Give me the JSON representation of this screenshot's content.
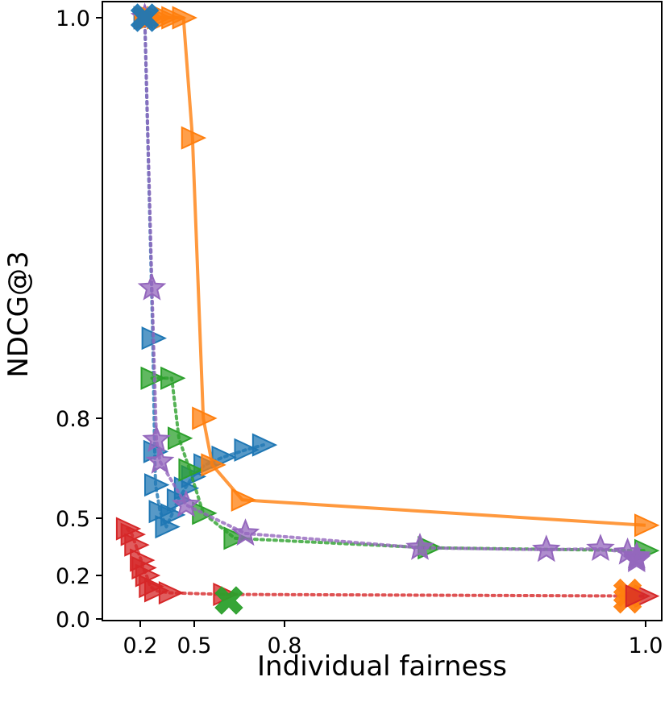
{
  "chart_data": {
    "type": "scatter",
    "title": "",
    "xlabel": "Individual fairness",
    "ylabel": "NDCG@3",
    "xlim": [
      0.0,
      1.0
    ],
    "ylim": [
      0.0,
      1.0
    ],
    "grid": false,
    "legend": "none",
    "x_ticks": [
      {
        "value": 0.2,
        "label": "0.2"
      },
      {
        "value": 0.5,
        "label": "0.5"
      },
      {
        "value": 0.8,
        "label": "0.8"
      },
      {
        "value": 1.0,
        "label": "1.0"
      }
    ],
    "y_ticks": [
      {
        "value": 0.0,
        "label": "0.0"
      },
      {
        "value": 0.2,
        "label": "0.2"
      },
      {
        "value": 0.5,
        "label": "0.5"
      },
      {
        "value": 0.8,
        "label": "0.8"
      },
      {
        "value": 1.0,
        "label": "1.0"
      }
    ],
    "series": [
      {
        "name": "blue",
        "color": "#1f77b4",
        "line_style": "dotted",
        "marker": "triangle-right",
        "points": [
          [
            0.225,
            1.0
          ],
          [
            0.27,
            0.84
          ],
          [
            0.28,
            0.7
          ],
          [
            0.285,
            0.6
          ],
          [
            0.31,
            0.52
          ],
          [
            0.345,
            0.455
          ],
          [
            0.375,
            0.51
          ],
          [
            0.41,
            0.555
          ],
          [
            0.45,
            0.59
          ],
          [
            0.49,
            0.625
          ],
          [
            0.535,
            0.66
          ],
          [
            0.595,
            0.683
          ],
          [
            0.67,
            0.705
          ],
          [
            0.73,
            0.72
          ]
        ]
      },
      {
        "name": "orange",
        "color": "#ff7f0e",
        "line_style": "solid",
        "marker": "triangle-right",
        "points": [
          [
            0.23,
            1.0
          ],
          [
            0.26,
            1.0
          ],
          [
            0.3,
            1.0
          ],
          [
            0.34,
            1.0
          ],
          [
            0.38,
            1.0
          ],
          [
            0.44,
            1.0
          ],
          [
            0.49,
            0.94
          ],
          [
            0.53,
            0.8
          ],
          [
            0.56,
            0.66
          ],
          [
            0.66,
            0.555
          ],
          [
            1.0,
            0.463
          ]
        ]
      },
      {
        "name": "green",
        "color": "#2ca02c",
        "line_style": "dotted",
        "marker": "triangle-right",
        "points": [
          [
            0.265,
            0.82
          ],
          [
            0.375,
            0.82
          ],
          [
            0.415,
            0.74
          ],
          [
            0.475,
            0.645
          ],
          [
            0.53,
            0.515
          ],
          [
            0.635,
            0.395
          ],
          [
            0.88,
            0.345
          ],
          [
            1.0,
            0.33
          ]
        ]
      },
      {
        "name": "purple",
        "color": "#9467bd",
        "line_style": "dotted",
        "marker": "star",
        "points": [
          [
            0.225,
            1.0
          ],
          [
            0.265,
            0.865
          ],
          [
            0.29,
            0.735
          ],
          [
            0.31,
            0.67
          ],
          [
            0.455,
            0.54
          ],
          [
            0.67,
            0.42
          ],
          [
            0.875,
            0.345
          ],
          [
            0.945,
            0.335
          ],
          [
            0.975,
            0.34
          ],
          [
            0.99,
            0.32
          ],
          [
            0.995,
            0.3
          ],
          [
            0.995,
            0.29
          ],
          [
            0.995,
            0.28
          ]
        ]
      },
      {
        "name": "red",
        "color": "#d62728",
        "line_style": "dotted",
        "marker": "triangle-right",
        "points": [
          [
            0.13,
            0.445
          ],
          [
            0.155,
            0.415
          ],
          [
            0.175,
            0.36
          ],
          [
            0.205,
            0.28
          ],
          [
            0.215,
            0.24
          ],
          [
            0.235,
            0.2
          ],
          [
            0.255,
            0.15
          ],
          [
            0.285,
            0.13
          ],
          [
            0.365,
            0.12
          ],
          [
            0.6,
            0.113
          ],
          [
            1.0,
            0.105
          ]
        ]
      }
    ],
    "extra_markers": [
      {
        "name": "blue-x",
        "color": "#1f77b4",
        "marker": "x",
        "point": [
          0.225,
          1.0
        ]
      },
      {
        "name": "green-x",
        "color": "#2ca02c",
        "marker": "x",
        "point": [
          0.615,
          0.085
        ]
      },
      {
        "name": "orange-x",
        "color": "#ff7f0e",
        "marker": "x",
        "point": [
          0.99,
          0.12
        ]
      },
      {
        "name": "orange-x-2",
        "color": "#ff7f0e",
        "marker": "x",
        "point": [
          0.99,
          0.09
        ]
      },
      {
        "name": "red-end",
        "color": "#d62728",
        "marker": "triangle-right",
        "point": [
          0.995,
          0.105
        ]
      }
    ]
  }
}
